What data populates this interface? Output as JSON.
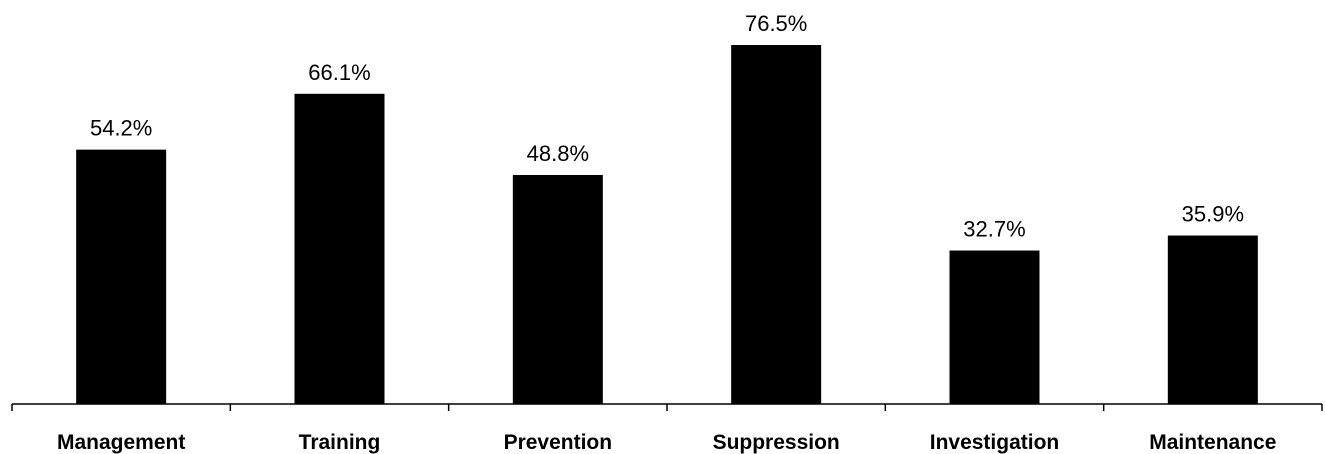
{
  "chart_data": {
    "type": "bar",
    "title": "",
    "xlabel": "",
    "ylabel": "",
    "categories": [
      "Management",
      "Training",
      "Prevention",
      "Suppression",
      "Investigation",
      "Maintenance"
    ],
    "values": [
      54.2,
      66.1,
      48.8,
      76.5,
      32.7,
      35.9
    ],
    "value_labels": [
      "54.2%",
      "66.1%",
      "48.8%",
      "76.5%",
      "32.7%",
      "35.9%"
    ],
    "unit": "%",
    "ylim": [
      0,
      84
    ],
    "y_axis_visible": false,
    "grid": false,
    "legend": "none",
    "colors": {
      "bar": "#000000",
      "background": "#ffffff",
      "text": "#000000"
    }
  }
}
